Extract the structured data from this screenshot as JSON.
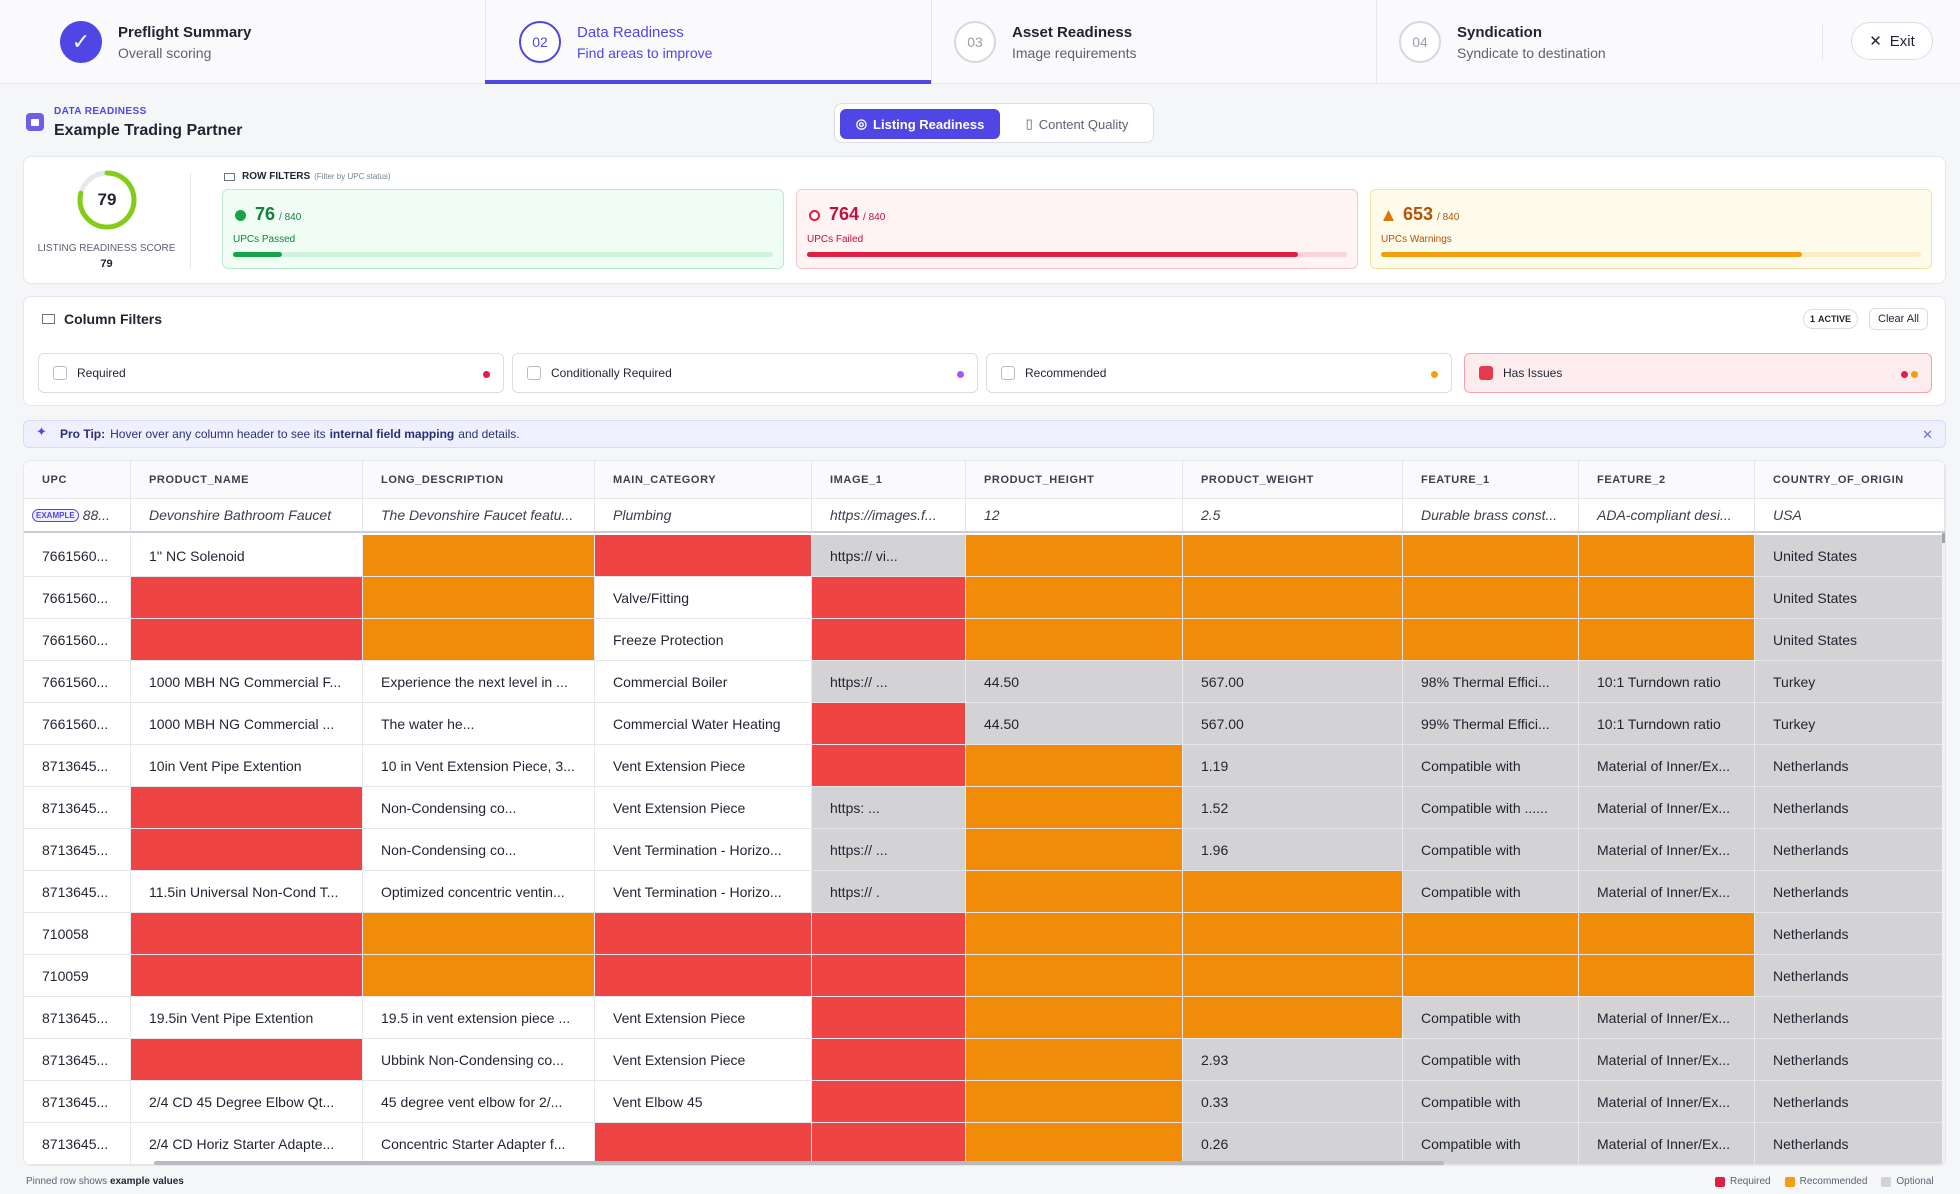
{
  "stepper": {
    "steps": [
      {
        "num": "✓",
        "title": "Preflight Summary",
        "subtitle": "Overall scoring"
      },
      {
        "num": "02",
        "title": "Data Readiness",
        "subtitle": "Find areas to improve"
      },
      {
        "num": "03",
        "title": "Asset Readiness",
        "subtitle": "Image requirements"
      },
      {
        "num": "04",
        "title": "Syndication",
        "subtitle": "Syndicate to destination"
      }
    ],
    "exit_label": "Exit"
  },
  "header": {
    "kicker": "DATA READINESS",
    "title": "Example Trading Partner",
    "toggle": {
      "listing": "Listing Readiness",
      "content": "Content Quality"
    }
  },
  "score": {
    "value": "79",
    "percent": 79,
    "label": "LISTING READINESS SCORE",
    "value_small": "79"
  },
  "row_filters": {
    "title": "ROW FILTERS",
    "subtitle": "(Filter by UPC status)",
    "passed": {
      "count": "76",
      "of": "/ 840",
      "label": "UPCs Passed",
      "fraction": 0.09
    },
    "failed": {
      "count": "764",
      "of": "/ 840",
      "label": "UPCs Failed",
      "fraction": 0.91
    },
    "warnings": {
      "count": "653",
      "of": "/ 840",
      "label": "UPCs Warnings",
      "fraction": 0.78
    }
  },
  "column_filters": {
    "title": "Column Filters",
    "active_count": "1",
    "active_label": "ACTIVE",
    "clear_label": "Clear All",
    "chips": [
      {
        "label": "Required",
        "checked": false
      },
      {
        "label": "Conditionally Required",
        "checked": false
      },
      {
        "label": "Recommended",
        "checked": false
      },
      {
        "label": "Has Issues",
        "checked": true
      }
    ]
  },
  "tip": {
    "lead": "Pro Tip:",
    "text_before": "Hover over any column header to see its",
    "link": "internal field mapping",
    "text_after": "and details."
  },
  "table": {
    "columns": [
      "UPC",
      "PRODUCT_NAME",
      "LONG_DESCRIPTION",
      "MAIN_CATEGORY",
      "IMAGE_1",
      "PRODUCT_HEIGHT",
      "PRODUCT_WEIGHT",
      "FEATURE_1",
      "FEATURE_2",
      "COUNTRY_OF_ORIGIN"
    ],
    "example_badge": "EXAMPLE",
    "example_row": [
      "88...",
      "Devonshire Bathroom Faucet",
      "The Devonshire Faucet featu...",
      "Plumbing",
      "https://images.f...",
      "12",
      "2.5",
      "Durable brass const...",
      "ADA-compliant desi...",
      "USA"
    ],
    "rows": [
      {
        "cells": [
          "7661560...",
          "1'' NC Solenoid",
          "",
          "",
          "https://          vi...",
          "",
          "",
          "",
          "",
          "United States"
        ],
        "status": [
          "ok",
          "ok",
          "rec",
          "req",
          "opt",
          "rec",
          "rec",
          "rec",
          "rec",
          "opt"
        ]
      },
      {
        "cells": [
          "7661560...",
          "",
          "",
          "Valve/Fitting",
          "",
          "",
          "",
          "",
          "",
          "United States"
        ],
        "status": [
          "ok",
          "req",
          "rec",
          "ok",
          "req",
          "rec",
          "rec",
          "rec",
          "rec",
          "opt"
        ]
      },
      {
        "cells": [
          "7661560...",
          "",
          "",
          "Freeze Protection",
          "",
          "",
          "",
          "",
          "",
          "United States"
        ],
        "status": [
          "ok",
          "req",
          "rec",
          "ok",
          "req",
          "rec",
          "rec",
          "rec",
          "rec",
          "opt"
        ]
      },
      {
        "cells": [
          "7661560...",
          "1000 MBH NG Commercial F...",
          "Experience the next level in ...",
          "Commercial Boiler",
          "https://          ...",
          "44.50",
          "567.00",
          "98% Thermal Effici...",
          "10:1 Turndown ratio",
          "Turkey"
        ],
        "status": [
          "ok",
          "ok",
          "ok",
          "ok",
          "opt",
          "opt",
          "opt",
          "opt",
          "opt",
          "opt"
        ]
      },
      {
        "cells": [
          "7661560...",
          "1000 MBH NG Commercial ...",
          "The                water he...",
          "Commercial Water Heating",
          "",
          "44.50",
          "567.00",
          "99% Thermal Effici...",
          "10:1 Turndown ratio",
          "Turkey"
        ],
        "status": [
          "ok",
          "ok",
          "ok",
          "ok",
          "req",
          "opt",
          "opt",
          "opt",
          "opt",
          "opt"
        ]
      },
      {
        "cells": [
          "8713645...",
          "10in Vent Pipe Extention",
          "10 in Vent Extension Piece, 3...",
          "Vent Extension Piece",
          "",
          "",
          "1.19",
          "Compatible with",
          "Material of Inner/Ex...",
          "Netherlands"
        ],
        "status": [
          "ok",
          "ok",
          "ok",
          "ok",
          "req",
          "rec",
          "opt",
          "opt",
          "opt",
          "opt"
        ]
      },
      {
        "cells": [
          "8713645...",
          "",
          "          Non-Condensing co...",
          "Vent Extension Piece",
          "https:          ...",
          "",
          "1.52",
          "Compatible with  ......",
          "Material of Inner/Ex...",
          "Netherlands"
        ],
        "status": [
          "ok",
          "req",
          "ok",
          "ok",
          "opt",
          "rec",
          "opt",
          "opt",
          "opt",
          "opt"
        ]
      },
      {
        "cells": [
          "8713645...",
          "",
          "          Non-Condensing co...",
          "Vent Termination - Horizo...",
          "https://          ...",
          "",
          "1.96",
          "Compatible with",
          "Material of Inner/Ex...",
          "Netherlands"
        ],
        "status": [
          "ok",
          "req",
          "ok",
          "ok",
          "opt",
          "rec",
          "opt",
          "opt",
          "opt",
          "opt"
        ]
      },
      {
        "cells": [
          "8713645...",
          "11.5in Universal Non-Cond T...",
          "Optimized concentric ventin...",
          "Vent Termination - Horizo...",
          "https://          .",
          "",
          "",
          "Compatible with",
          "Material of Inner/Ex...",
          "Netherlands"
        ],
        "status": [
          "ok",
          "ok",
          "ok",
          "ok",
          "opt",
          "rec",
          "rec",
          "opt",
          "opt",
          "opt"
        ]
      },
      {
        "cells": [
          "710058",
          "",
          "",
          "",
          "",
          "",
          "",
          "",
          "",
          "Netherlands"
        ],
        "status": [
          "ok",
          "req",
          "rec",
          "req",
          "req",
          "rec",
          "rec",
          "rec",
          "rec",
          "opt"
        ]
      },
      {
        "cells": [
          "710059",
          "",
          "",
          "",
          "",
          "",
          "",
          "",
          "",
          "Netherlands"
        ],
        "status": [
          "ok",
          "req",
          "rec",
          "req",
          "req",
          "rec",
          "rec",
          "rec",
          "rec",
          "opt"
        ]
      },
      {
        "cells": [
          "8713645...",
          "19.5in Vent Pipe Extention",
          "19.5 in vent extension piece ...",
          "Vent Extension Piece",
          "",
          "",
          "",
          "Compatible with",
          "Material of Inner/Ex...",
          "Netherlands"
        ],
        "status": [
          "ok",
          "ok",
          "ok",
          "ok",
          "req",
          "rec",
          "rec",
          "opt",
          "opt",
          "opt"
        ]
      },
      {
        "cells": [
          "8713645...",
          "",
          "Ubbink Non-Condensing co...",
          "Vent Extension Piece",
          "",
          "",
          "2.93",
          "Compatible with",
          "Material of Inner/Ex...",
          "Netherlands"
        ],
        "status": [
          "ok",
          "req",
          "ok",
          "ok",
          "req",
          "rec",
          "opt",
          "opt",
          "opt",
          "opt"
        ]
      },
      {
        "cells": [
          "8713645...",
          "2/4 CD 45 Degree Elbow Qt...",
          "45 degree vent elbow for 2/...",
          "Vent Elbow 45",
          "",
          "",
          "0.33",
          "Compatible with",
          "Material of Inner/Ex...",
          "Netherlands"
        ],
        "status": [
          "ok",
          "ok",
          "ok",
          "ok",
          "req",
          "rec",
          "opt",
          "opt",
          "opt",
          "opt"
        ]
      },
      {
        "cells": [
          "8713645...",
          "2/4 CD Horiz Starter Adapte...",
          "Concentric Starter Adapter f...",
          "",
          "",
          "",
          "0.26",
          "Compatible with",
          "Material of Inner/Ex...",
          "Netherlands"
        ],
        "status": [
          "ok",
          "ok",
          "ok",
          "req",
          "req",
          "rec",
          "opt",
          "opt",
          "opt",
          "opt"
        ]
      }
    ]
  },
  "footer": {
    "pinned_text": "Pinned row shows",
    "pinned_bold": "example values",
    "legend": [
      "Required",
      "Recommended",
      "Optional"
    ]
  },
  "colors": {
    "accent": "#4f46e5",
    "required": "#ef4444",
    "recommended": "#f08c0a",
    "optional": "#d3d3d5",
    "passed": "#16a34a",
    "failed": "#e11d48",
    "warning": "#d97706"
  }
}
